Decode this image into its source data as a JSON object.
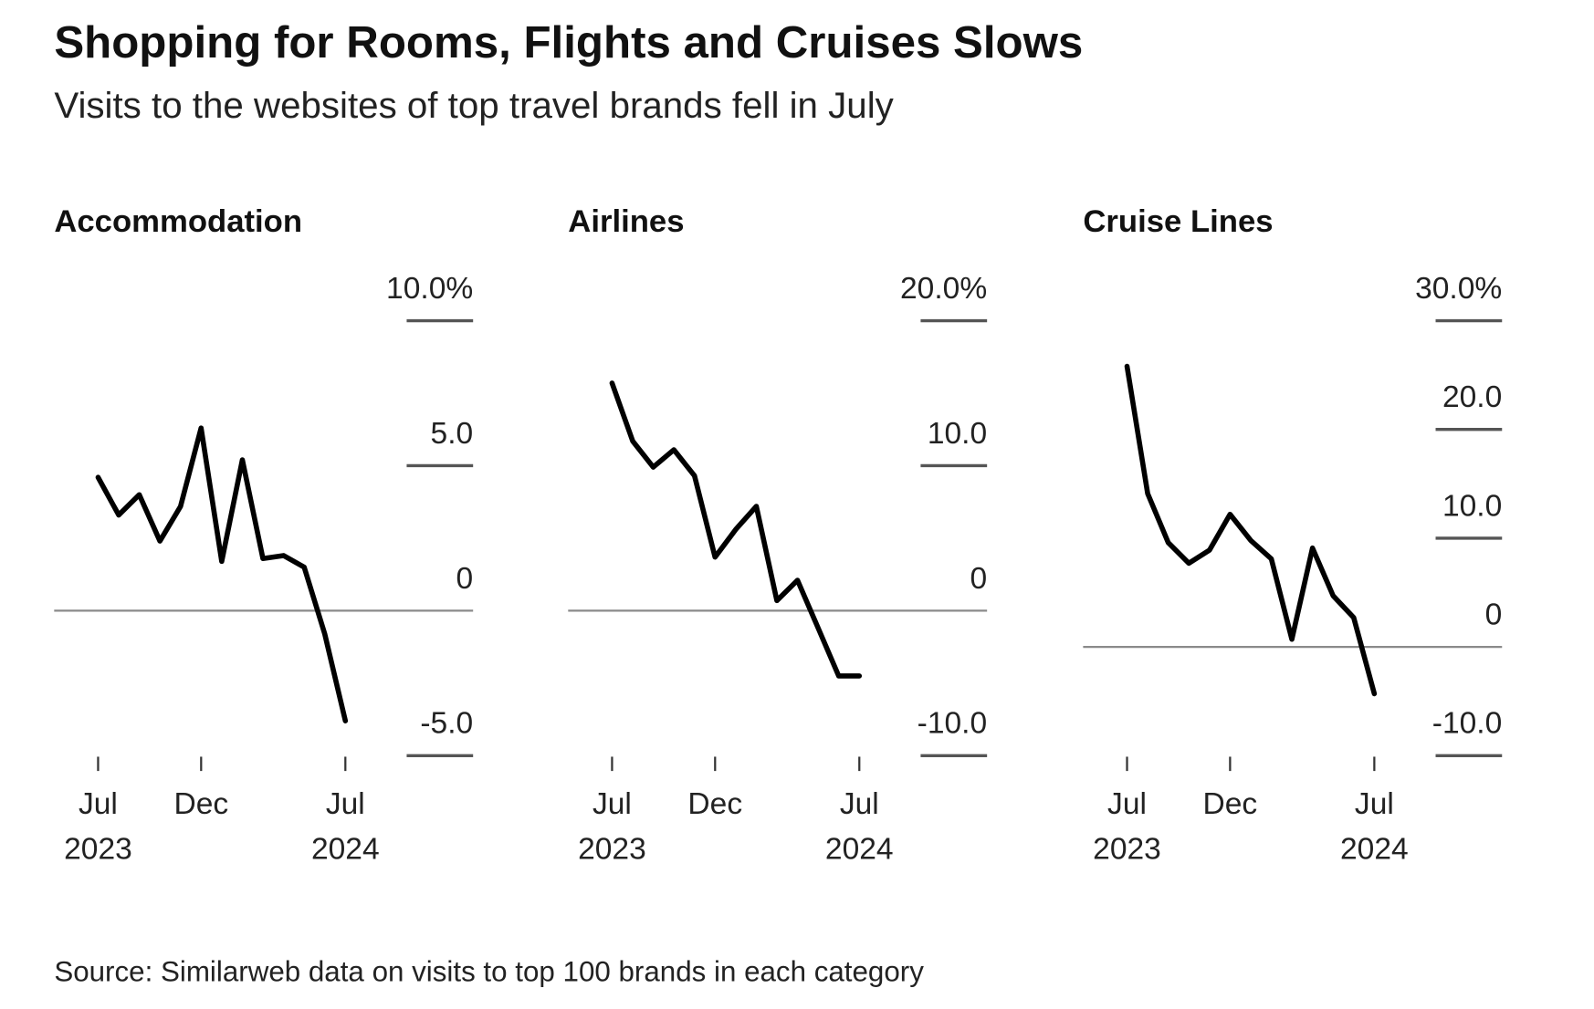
{
  "title": "Shopping for Rooms, Flights and Cruises Slows",
  "subtitle": "Visits to the websites of top travel brands fell in July",
  "source": "Source: Similarweb data on visits to top 100 brands in each category",
  "chart_data": [
    {
      "type": "line",
      "title": "Accommodation",
      "color": "#000000",
      "x": [
        "2023-07",
        "2023-08",
        "2023-09",
        "2023-10",
        "2023-11",
        "2023-12",
        "2024-01",
        "2024-02",
        "2024-03",
        "2024-04",
        "2024-05",
        "2024-06",
        "2024-07"
      ],
      "values": [
        4.6,
        3.3,
        4.0,
        2.4,
        3.6,
        6.3,
        1.7,
        5.2,
        1.8,
        1.9,
        1.5,
        -0.8,
        -3.8
      ],
      "xlim": [
        "2023-07",
        "2024-07"
      ],
      "xticks": [
        {
          "value": "2023-07",
          "label": "Jul 2023"
        },
        {
          "value": "2023-12",
          "label": "Dec"
        },
        {
          "value": "2024-07",
          "label": "Jul 2024"
        }
      ],
      "ylim": [
        -5,
        10
      ],
      "yticks": [
        {
          "value": -5,
          "label": "-5.0"
        },
        0,
        {
          "value": 5,
          "label": "5.0"
        },
        {
          "value": 10,
          "label": "10.0%"
        }
      ]
    },
    {
      "type": "line",
      "title": "Airlines",
      "color": "#000000",
      "x": [
        "2023-07",
        "2023-08",
        "2023-09",
        "2023-10",
        "2023-11",
        "2023-12",
        "2024-01",
        "2024-02",
        "2024-03",
        "2024-04",
        "2024-05",
        "2024-06",
        "2024-07"
      ],
      "values": [
        15.7,
        11.7,
        9.9,
        11.1,
        9.3,
        3.7,
        5.6,
        7.2,
        0.7,
        2.1,
        -1.2,
        -4.5,
        -4.5
      ],
      "xlim": [
        "2023-07",
        "2024-07"
      ],
      "xticks": [
        {
          "value": "2023-07",
          "label": "Jul 2023"
        },
        {
          "value": "2023-12",
          "label": "Dec"
        },
        {
          "value": "2024-07",
          "label": "Jul 2024"
        }
      ],
      "ylim": [
        -10,
        20
      ],
      "yticks": [
        {
          "value": -10,
          "label": "-10.0"
        },
        0,
        {
          "value": 10,
          "label": "10.0"
        },
        {
          "value": 20,
          "label": "20.0%"
        }
      ]
    },
    {
      "type": "line",
      "title": "Cruise Lines",
      "color": "#000000",
      "x": [
        "2023-07",
        "2023-08",
        "2023-09",
        "2023-10",
        "2023-11",
        "2023-12",
        "2024-01",
        "2024-02",
        "2024-03",
        "2024-04",
        "2024-05",
        "2024-06",
        "2024-07"
      ],
      "values": [
        25.8,
        14.1,
        9.6,
        7.7,
        8.9,
        12.2,
        9.8,
        8.1,
        0.7,
        9.1,
        4.7,
        2.7,
        -4.3
      ],
      "xlim": [
        "2023-07",
        "2024-07"
      ],
      "xticks": [
        {
          "value": "2023-07",
          "label": "Jul 2023"
        },
        {
          "value": "2023-12",
          "label": "Dec"
        },
        {
          "value": "2024-07",
          "label": "Jul 2024"
        }
      ],
      "ylim": [
        -10,
        30
      ],
      "yticks": [
        {
          "value": -10,
          "label": "-10.0"
        },
        0,
        {
          "value": 10,
          "label": "10.0"
        },
        {
          "value": 20,
          "label": "20.0"
        },
        {
          "value": 30,
          "label": "30.0%"
        }
      ]
    }
  ]
}
